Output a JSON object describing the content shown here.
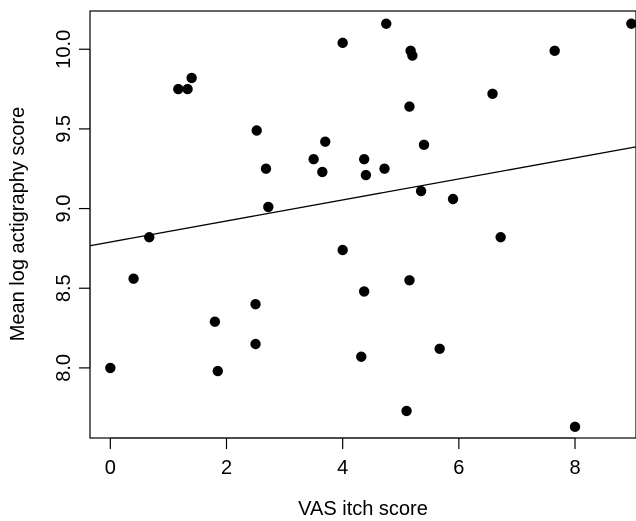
{
  "chart_data": {
    "type": "scatter",
    "title": "",
    "xlabel": "VAS itch score",
    "ylabel": "Mean log actigraphy score",
    "xlim": [
      -0.35,
      9.05
    ],
    "ylim": [
      7.56,
      10.24
    ],
    "xticks": [
      0,
      2,
      4,
      6,
      8
    ],
    "yticks": [
      8.0,
      8.5,
      9.0,
      9.5,
      10.0
    ],
    "xtick_labels": [
      "0",
      "2",
      "4",
      "6",
      "8"
    ],
    "ytick_labels": [
      "8.0",
      "8.5",
      "9.0",
      "9.5",
      "10.0"
    ],
    "grid": false,
    "legend": "none",
    "regression_line": {
      "intercept": 8.79,
      "slope": 0.066
    },
    "points": [
      {
        "x": 0.0,
        "y": 8.0
      },
      {
        "x": 0.4,
        "y": 8.56
      },
      {
        "x": 0.67,
        "y": 8.82
      },
      {
        "x": 1.17,
        "y": 9.75
      },
      {
        "x": 1.33,
        "y": 9.75
      },
      {
        "x": 1.4,
        "y": 9.82
      },
      {
        "x": 1.8,
        "y": 8.29
      },
      {
        "x": 1.85,
        "y": 7.98
      },
      {
        "x": 2.5,
        "y": 8.15
      },
      {
        "x": 2.5,
        "y": 8.4
      },
      {
        "x": 2.52,
        "y": 9.49
      },
      {
        "x": 2.68,
        "y": 9.25
      },
      {
        "x": 2.72,
        "y": 9.01
      },
      {
        "x": 3.5,
        "y": 9.31
      },
      {
        "x": 3.65,
        "y": 9.23
      },
      {
        "x": 3.7,
        "y": 9.42
      },
      {
        "x": 4.0,
        "y": 10.04
      },
      {
        "x": 4.0,
        "y": 8.74
      },
      {
        "x": 4.32,
        "y": 8.07
      },
      {
        "x": 4.37,
        "y": 8.48
      },
      {
        "x": 4.37,
        "y": 9.31
      },
      {
        "x": 4.4,
        "y": 9.21
      },
      {
        "x": 4.72,
        "y": 9.25
      },
      {
        "x": 4.75,
        "y": 10.16
      },
      {
        "x": 5.1,
        "y": 7.73
      },
      {
        "x": 5.15,
        "y": 8.55
      },
      {
        "x": 5.15,
        "y": 9.64
      },
      {
        "x": 5.17,
        "y": 9.99
      },
      {
        "x": 5.2,
        "y": 9.96
      },
      {
        "x": 5.35,
        "y": 9.11
      },
      {
        "x": 5.4,
        "y": 9.4
      },
      {
        "x": 5.67,
        "y": 8.12
      },
      {
        "x": 5.9,
        "y": 9.06
      },
      {
        "x": 6.58,
        "y": 9.72
      },
      {
        "x": 6.72,
        "y": 8.82
      },
      {
        "x": 7.65,
        "y": 9.99
      },
      {
        "x": 8.0,
        "y": 7.63
      },
      {
        "x": 8.97,
        "y": 10.16
      }
    ]
  }
}
